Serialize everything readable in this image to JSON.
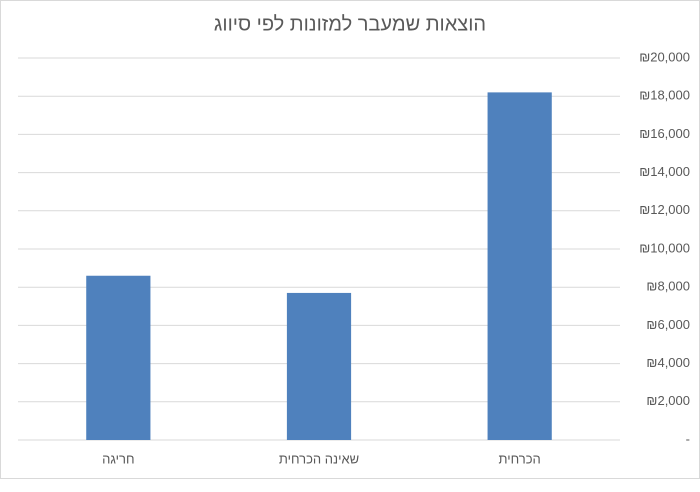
{
  "chart_data": {
    "type": "bar",
    "title": "הוצאות שמעבר למזונות לפי סיווג",
    "categories": [
      "הכרחית",
      "שאינה הכרחית",
      "חריגה"
    ],
    "values": [
      18200,
      7700,
      8600
    ],
    "color": "#4f81bd",
    "x_reversed": true,
    "y_axis_side": "right",
    "ylim": [
      0,
      20000
    ],
    "yticks": [
      {
        "value": 0,
        "label": "-"
      },
      {
        "value": 2000,
        "label": "₪2,000"
      },
      {
        "value": 4000,
        "label": "₪4,000"
      },
      {
        "value": 6000,
        "label": "₪6,000"
      },
      {
        "value": 8000,
        "label": "₪8,000"
      },
      {
        "value": 10000,
        "label": "₪10,000"
      },
      {
        "value": 12000,
        "label": "₪12,000"
      },
      {
        "value": 14000,
        "label": "₪14,000"
      },
      {
        "value": 16000,
        "label": "₪16,000"
      },
      {
        "value": 18000,
        "label": "₪18,000"
      },
      {
        "value": 20000,
        "label": "₪20,000"
      }
    ],
    "grid": true
  }
}
